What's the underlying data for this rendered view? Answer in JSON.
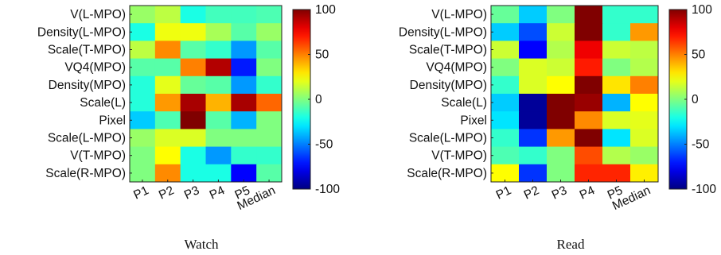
{
  "chart_data": [
    {
      "type": "heatmap",
      "caption": "Watch",
      "rows": [
        "V(L-MPO)",
        "Density(L-MPO)",
        "Scale(T-MPO)",
        "VQ4(MPO)",
        "Density(MPO)",
        "Scale(L)",
        "Pixel",
        "Scale(L-MPO)",
        "V(T-MPO)",
        "Scale(R-MPO)"
      ],
      "columns": [
        "P1",
        "P2",
        "P3",
        "P4",
        "P5",
        "Median"
      ],
      "values": [
        [
          5,
          12,
          -20,
          -12,
          -12,
          -10
        ],
        [
          -20,
          22,
          22,
          8,
          -8,
          5
        ],
        [
          12,
          48,
          -8,
          -15,
          -45,
          -8
        ],
        [
          -8,
          -8,
          50,
          90,
          -70,
          0
        ],
        [
          -18,
          20,
          -5,
          -8,
          -45,
          -15
        ],
        [
          -18,
          45,
          92,
          40,
          92,
          55
        ],
        [
          -35,
          -10,
          100,
          -8,
          -40,
          0
        ],
        [
          5,
          18,
          18,
          0,
          0,
          0
        ],
        [
          0,
          25,
          -20,
          -45,
          -15,
          -15
        ],
        [
          0,
          48,
          -20,
          -20,
          -75,
          -8
        ]
      ],
      "colorbar": {
        "min": -100,
        "max": 100,
        "ticks": [
          100,
          50,
          0,
          -50,
          -100
        ],
        "colormap": "jet"
      }
    },
    {
      "type": "heatmap",
      "caption": "Read",
      "rows": [
        "V(L-MPO)",
        "Density(L-MPO)",
        "Scale(T-MPO)",
        "VQ4(MPO)",
        "Density(MPO)",
        "Scale(L)",
        "Pixel",
        "Scale(L-MPO)",
        "V(T-MPO)",
        "Scale(R-MPO)"
      ],
      "columns": [
        "P1",
        "P2",
        "P3",
        "P4",
        "P5",
        "Median"
      ],
      "values": [
        [
          -5,
          -35,
          0,
          100,
          -15,
          -15
        ],
        [
          -35,
          -60,
          15,
          100,
          -15,
          45
        ],
        [
          15,
          -75,
          10,
          78,
          15,
          12
        ],
        [
          0,
          18,
          15,
          70,
          0,
          10
        ],
        [
          -15,
          18,
          25,
          100,
          30,
          50
        ],
        [
          -35,
          -95,
          100,
          95,
          -40,
          25
        ],
        [
          -30,
          -95,
          100,
          48,
          18,
          20
        ],
        [
          -15,
          -65,
          45,
          100,
          -30,
          18
        ],
        [
          -10,
          -15,
          0,
          60,
          10,
          5
        ],
        [
          25,
          -65,
          0,
          68,
          68,
          28
        ]
      ],
      "colorbar": {
        "min": -100,
        "max": 100,
        "ticks": [
          100,
          50,
          0,
          -50,
          -100
        ],
        "colormap": "jet"
      }
    }
  ]
}
